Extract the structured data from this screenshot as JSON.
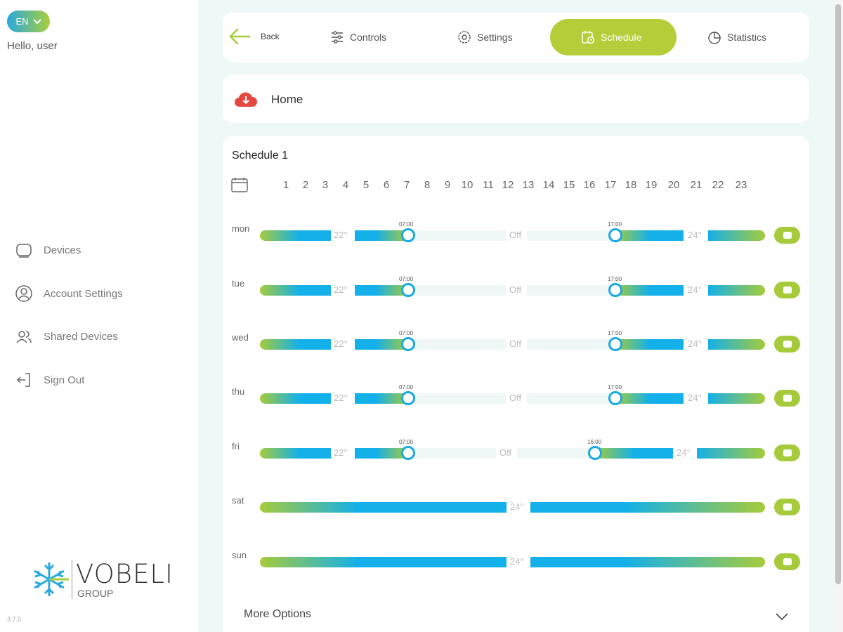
{
  "sidebar": {
    "lang": "EN",
    "greeting": "Hello, user",
    "nav": [
      {
        "label": "Devices",
        "icon": "device-icon"
      },
      {
        "label": "Account Settings",
        "icon": "user-icon"
      },
      {
        "label": "Shared Devices",
        "icon": "users-icon"
      },
      {
        "label": "Sign Out",
        "icon": "sign-out-icon"
      }
    ],
    "logo": {
      "brand": "VOBELI",
      "group": "GROUP"
    },
    "version": "3.7.5"
  },
  "topbar": {
    "back": "Back",
    "tabs": [
      {
        "label": "Controls",
        "icon": "sliders-icon",
        "active": false
      },
      {
        "label": "Settings",
        "icon": "gear-icon",
        "active": false
      },
      {
        "label": "Schedule",
        "icon": "calendar-clock-icon",
        "active": true
      },
      {
        "label": "Statistics",
        "icon": "pie-chart-icon",
        "active": false
      }
    ]
  },
  "home": {
    "name": "Home",
    "icon": "cloud-download-icon"
  },
  "schedule": {
    "title": "Schedule 1",
    "hours": [
      "1",
      "2",
      "3",
      "4",
      "5",
      "6",
      "7",
      "8",
      "9",
      "10",
      "11",
      "12",
      "13",
      "14",
      "15",
      "16",
      "17",
      "18",
      "19",
      "20",
      "21",
      "22",
      "23"
    ],
    "days": [
      {
        "label": "mon",
        "t1": "07:00",
        "t2": "17:00",
        "temp1": "22°",
        "off": "Off",
        "temp2": "24°"
      },
      {
        "label": "tue",
        "t1": "07:00",
        "t2": "17:00",
        "temp1": "22°",
        "off": "Off",
        "temp2": "24°"
      },
      {
        "label": "wed",
        "t1": "07:00",
        "t2": "17:00",
        "temp1": "22°",
        "off": "Off",
        "temp2": "24°"
      },
      {
        "label": "thu",
        "t1": "07:00",
        "t2": "17:00",
        "temp1": "22°",
        "off": "Off",
        "temp2": "24°"
      },
      {
        "label": "fri",
        "t1": "07:00",
        "t2": "16:00",
        "temp1": "22°",
        "off": "Off",
        "temp2": "24°"
      },
      {
        "label": "sat",
        "temp": "24°"
      },
      {
        "label": "sun",
        "temp": "24°"
      }
    ],
    "more_options": "More Options"
  },
  "colors": {
    "accent": "#b5cd38",
    "blue": "#14b0ea",
    "green": "#a6cb3a",
    "bg": "#eef8f6"
  }
}
